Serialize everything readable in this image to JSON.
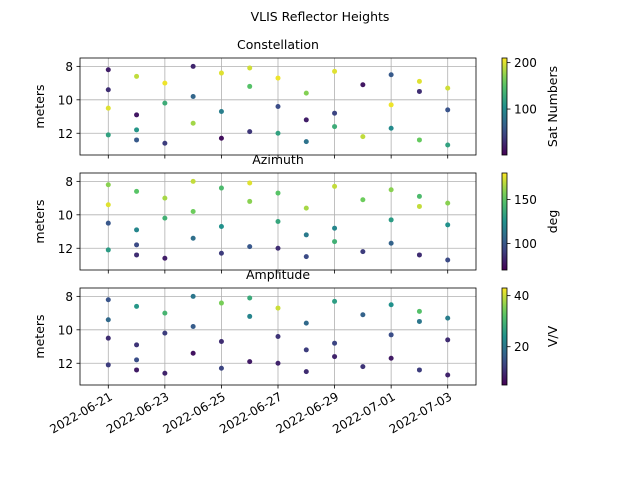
{
  "figure": {
    "suptitle": "VLIS Reflector Heights"
  },
  "chart_data": [
    {
      "type": "scatter",
      "title": "Constellation",
      "ylabel": "meters",
      "xlim": [
        "2022-06-20",
        "2022-07-04"
      ],
      "ylim": [
        13.3,
        7.5
      ],
      "y_inverted": true,
      "yticks": [
        8,
        10,
        12
      ],
      "colorbar": {
        "label": "Sat Numbers",
        "range": [
          1,
          210
        ],
        "ticks": [
          100,
          200
        ],
        "tick_labels": [
          "100",
          "200"
        ],
        "colormap": "viridis"
      }
    },
    {
      "type": "scatter",
      "title": "Azimuth",
      "ylabel": "meters",
      "xlim": [
        "2022-06-20",
        "2022-07-04"
      ],
      "ylim": [
        13.3,
        7.5
      ],
      "y_inverted": true,
      "yticks": [
        8,
        10,
        12
      ],
      "colorbar": {
        "label": "deg",
        "range": [
          70,
          180
        ],
        "ticks": [
          100,
          150
        ],
        "tick_labels": [
          "100",
          "150"
        ],
        "colormap": "viridis"
      }
    },
    {
      "type": "scatter",
      "title": "Amplitude",
      "ylabel": "meters",
      "xlim": [
        "2022-06-20",
        "2022-07-04"
      ],
      "ylim": [
        13.3,
        7.5
      ],
      "y_inverted": true,
      "yticks": [
        8,
        10,
        12
      ],
      "colorbar": {
        "label": "V/V",
        "range": [
          5,
          43
        ],
        "ticks": [
          20,
          40
        ],
        "tick_labels": [
          "20",
          "40"
        ],
        "colormap": "viridis"
      }
    }
  ],
  "x_axis": {
    "ticks": [
      "2022-06-21",
      "2022-06-23",
      "2022-06-25",
      "2022-06-27",
      "2022-06-29",
      "2022-07-01",
      "2022-07-03"
    ],
    "tick_labels": [
      "2022-06-21",
      "2022-06-23",
      "2022-06-25",
      "2022-06-27",
      "2022-06-29",
      "2022-07-01",
      "2022-07-03"
    ]
  },
  "scatter_points": [
    [
      "2022-06-21",
      12.1,
      120,
      130,
      12
    ],
    [
      "2022-06-21",
      8.2,
      20,
      160,
      15
    ],
    [
      "2022-06-21",
      10.5,
      200,
      100,
      10
    ],
    [
      "2022-06-21",
      9.4,
      30,
      175,
      18
    ],
    [
      "2022-06-22",
      12.4,
      60,
      85,
      8
    ],
    [
      "2022-06-22",
      8.6,
      190,
      150,
      25
    ],
    [
      "2022-06-22",
      10.9,
      15,
      120,
      11
    ],
    [
      "2022-06-22",
      11.8,
      110,
      95,
      14
    ],
    [
      "2022-06-23",
      9.0,
      205,
      165,
      30
    ],
    [
      "2022-06-23",
      12.6,
      40,
      80,
      9
    ],
    [
      "2022-06-23",
      10.2,
      130,
      140,
      12
    ],
    [
      "2022-06-24",
      8.0,
      25,
      170,
      20
    ],
    [
      "2022-06-24",
      11.4,
      180,
      110,
      7
    ],
    [
      "2022-06-24",
      9.8,
      70,
      155,
      16
    ],
    [
      "2022-06-25",
      12.3,
      10,
      90,
      13
    ],
    [
      "2022-06-25",
      8.4,
      200,
      145,
      35
    ],
    [
      "2022-06-25",
      10.7,
      90,
      125,
      10
    ],
    [
      "2022-06-26",
      9.2,
      150,
      160,
      22
    ],
    [
      "2022-06-26",
      11.9,
      35,
      100,
      8
    ],
    [
      "2022-06-26",
      8.1,
      195,
      175,
      28
    ],
    [
      "2022-06-27",
      10.4,
      50,
      135,
      11
    ],
    [
      "2022-06-27",
      12.0,
      120,
      85,
      9
    ],
    [
      "2022-06-27",
      8.7,
      205,
      150,
      40
    ],
    [
      "2022-06-28",
      11.2,
      20,
      115,
      12
    ],
    [
      "2022-06-28",
      9.6,
      170,
      165,
      18
    ],
    [
      "2022-06-28",
      12.5,
      80,
      95,
      10
    ],
    [
      "2022-06-29",
      8.3,
      200,
      170,
      26
    ],
    [
      "2022-06-29",
      10.8,
      45,
      120,
      13
    ],
    [
      "2022-06-29",
      11.6,
      130,
      140,
      9
    ],
    [
      "2022-06-30",
      9.1,
      15,
      155,
      17
    ],
    [
      "2022-06-30",
      12.2,
      190,
      90,
      11
    ],
    [
      "2022-07-01",
      8.5,
      60,
      160,
      24
    ],
    [
      "2022-07-01",
      10.3,
      205,
      130,
      14
    ],
    [
      "2022-07-01",
      11.7,
      100,
      105,
      8
    ],
    [
      "2022-07-02",
      9.5,
      30,
      170,
      20
    ],
    [
      "2022-07-02",
      12.4,
      160,
      85,
      12
    ],
    [
      "2022-07-02",
      8.9,
      200,
      145,
      32
    ],
    [
      "2022-07-03",
      10.6,
      55,
      125,
      10
    ],
    [
      "2022-07-03",
      12.7,
      120,
      95,
      9
    ],
    [
      "2022-07-03",
      9.3,
      195,
      160,
      21
    ]
  ],
  "colors": {
    "grid": "#b0b0b0",
    "frame": "#000000"
  }
}
